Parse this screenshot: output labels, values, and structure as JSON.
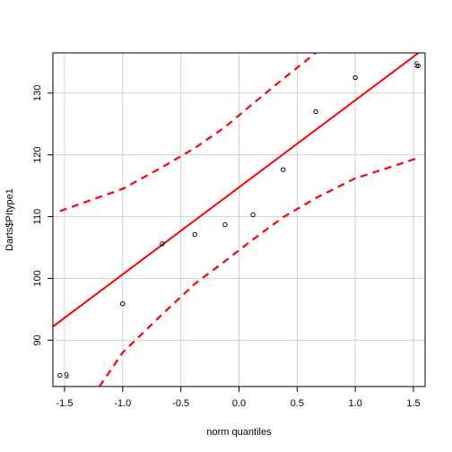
{
  "chart_data": {
    "type": "scatter",
    "title": "",
    "xlabel": "norm quantiles",
    "ylabel": "Darts$PItype1",
    "xlim": [
      -1.6,
      1.6
    ],
    "ylim": [
      82.5,
      136.5
    ],
    "xticks": [
      -1.5,
      -1.0,
      -0.5,
      0.0,
      0.5,
      1.0,
      1.5
    ],
    "xtick_labels": [
      "-1.5",
      "-1.0",
      "-0.5",
      "0.0",
      "0.5",
      "1.0",
      "1.5"
    ],
    "yticks": [
      90,
      100,
      110,
      120,
      130
    ],
    "ytick_labels": [
      "90",
      "100",
      "110",
      "120",
      "130"
    ],
    "grid": true,
    "series": [
      {
        "kind": "points",
        "x": [
          -1.54,
          -1.0,
          -0.66,
          -0.38,
          -0.12,
          0.12,
          0.38,
          0.66,
          1.0,
          1.54
        ],
        "y": [
          84.3,
          95.9,
          105.6,
          107.1,
          108.7,
          110.3,
          117.6,
          127.0,
          132.5,
          134.4
        ]
      },
      {
        "kind": "reference-line",
        "color": "#ff0000",
        "x": [
          -1.6,
          1.6
        ],
        "y": [
          92.2,
          137.3
        ]
      },
      {
        "kind": "band-upper",
        "color": "#ff0000",
        "dashed": true,
        "x": [
          -1.54,
          -1.0,
          -0.66,
          -0.38,
          -0.12,
          0.12,
          0.38,
          0.66
        ],
        "y": [
          110.9,
          114.5,
          118.0,
          121.1,
          124.5,
          128.3,
          132.3,
          136.5
        ]
      },
      {
        "kind": "band-lower",
        "color": "#ff0000",
        "dashed": true,
        "x": [
          -1.2,
          -1.0,
          -0.66,
          -0.38,
          -0.12,
          0.12,
          0.38,
          0.66,
          1.0,
          1.3,
          1.54
        ],
        "y": [
          82.5,
          88.0,
          94.2,
          99.1,
          102.8,
          106.3,
          109.9,
          113.0,
          116.2,
          118.0,
          119.5
        ]
      }
    ],
    "point_labels": [
      {
        "text": "9",
        "x": -1.52,
        "y": 84.4
      },
      {
        "text": "5",
        "x": 1.49,
        "y": 134.7
      }
    ]
  }
}
